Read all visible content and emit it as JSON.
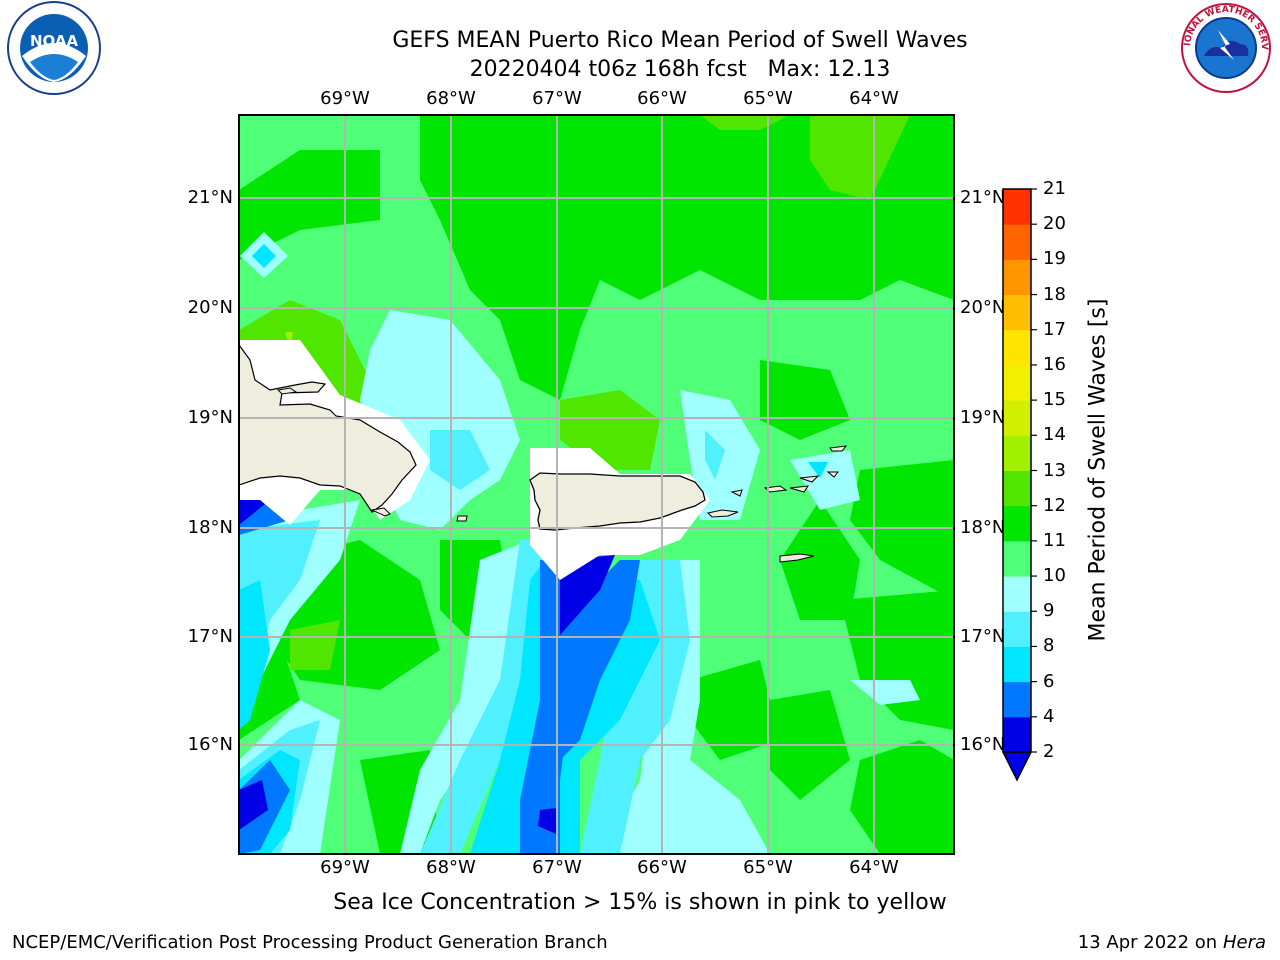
{
  "title": {
    "line1": "GEFS MEAN Puerto Rico Mean Period of Swell Waves",
    "line2": "20220404 t06z 168h fcst   Max: 12.13"
  },
  "map": {
    "lon_ticks": [
      "69°W",
      "68°W",
      "67°W",
      "66°W",
      "65°W",
      "64°W"
    ],
    "lat_ticks": [
      "21°N",
      "20°N",
      "19°N",
      "18°N",
      "17°N",
      "16°N"
    ]
  },
  "colorbar": {
    "title": "Mean Period of Swell Waves [s]",
    "levels": [
      "2",
      "4",
      "6",
      "8",
      "9",
      "10",
      "11",
      "12",
      "13",
      "14",
      "15",
      "16",
      "17",
      "18",
      "19",
      "20",
      "21"
    ],
    "colors": [
      "#0000e6",
      "#0078ff",
      "#00e6ff",
      "#50f0ff",
      "#a0ffff",
      "#50ff78",
      "#00e600",
      "#50e600",
      "#a0f000",
      "#d0f000",
      "#f0f000",
      "#ffe600",
      "#ffbe00",
      "#ff9600",
      "#ff6400",
      "#ff3200",
      "#ff0000"
    ],
    "under_color": "#0000e6"
  },
  "note": "Sea Ice Concentration > 15% is shown in pink to yellow",
  "footer": {
    "left": "NCEP/EMC/Verification Post Processing Product Generation Branch",
    "date": "13 Apr 2022 on",
    "machine": "Hera"
  },
  "logos": {
    "noaa_text": "NOAA",
    "nws_text": "NATIONAL WEATHER SERVICE"
  }
}
